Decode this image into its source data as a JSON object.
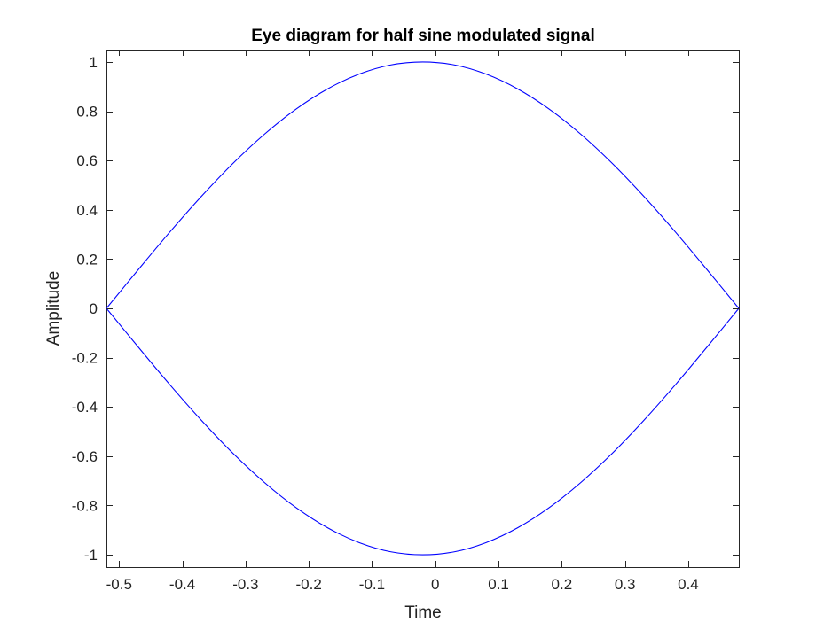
{
  "chart_data": {
    "type": "line",
    "title": "Eye diagram for half sine modulated signal",
    "xlabel": "Time",
    "ylabel": "Amplitude",
    "xlim": [
      -0.52,
      0.48
    ],
    "ylim": [
      -1.05,
      1.05
    ],
    "xticks": [
      -0.5,
      -0.4,
      -0.3,
      -0.2,
      -0.1,
      0,
      0.1,
      0.2,
      0.3,
      0.4
    ],
    "xtick_labels": [
      "-0.5",
      "-0.4",
      "-0.3",
      "-0.2",
      "-0.1",
      "0",
      "0.1",
      "0.2",
      "0.3",
      "0.4"
    ],
    "yticks": [
      1,
      0.8,
      0.6,
      0.4,
      0.2,
      0,
      -0.2,
      -0.4,
      -0.6,
      -0.8,
      -1
    ],
    "ytick_labels": [
      "1",
      "0.8",
      "0.6",
      "0.4",
      "0.2",
      "0",
      "-0.2",
      "-0.4",
      "-0.6",
      "-0.8",
      "-1"
    ],
    "grid": false,
    "line_color": "#0000ff",
    "series": [
      {
        "x": [
          -0.52,
          -0.47,
          -0.42,
          -0.37,
          -0.32,
          -0.27,
          -0.22,
          -0.17,
          -0.12,
          -0.07,
          -0.02,
          0.03,
          0.08,
          0.13,
          0.18,
          0.23,
          0.28,
          0.33,
          0.38,
          0.43,
          0.48
        ],
        "values": [
          0,
          0.156,
          0.309,
          0.454,
          0.588,
          0.707,
          0.809,
          0.891,
          0.951,
          0.988,
          1,
          0.988,
          0.951,
          0.891,
          0.809,
          0.707,
          0.588,
          0.454,
          0.309,
          0.156,
          0
        ]
      },
      {
        "x": [
          -0.52,
          -0.47,
          -0.42,
          -0.37,
          -0.32,
          -0.27,
          -0.22,
          -0.17,
          -0.12,
          -0.07,
          -0.02,
          0.03,
          0.08,
          0.13,
          0.18,
          0.23,
          0.28,
          0.33,
          0.38,
          0.43,
          0.48
        ],
        "values": [
          0,
          -0.156,
          -0.309,
          -0.454,
          -0.588,
          -0.707,
          -0.809,
          -0.891,
          -0.951,
          -0.988,
          -1,
          -0.988,
          -0.951,
          -0.891,
          -0.809,
          -0.707,
          -0.588,
          -0.454,
          -0.309,
          -0.156,
          0
        ]
      }
    ]
  }
}
